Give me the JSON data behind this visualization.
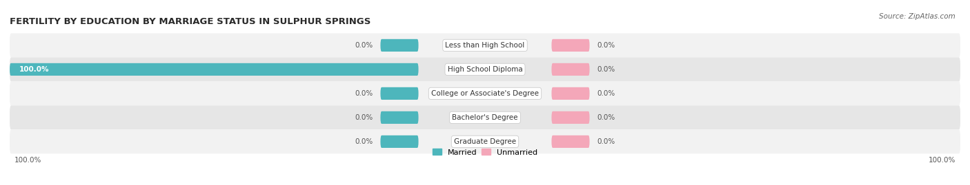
{
  "title": "FERTILITY BY EDUCATION BY MARRIAGE STATUS IN SULPHUR SPRINGS",
  "source_text": "Source: ZipAtlas.com",
  "categories": [
    "Less than High School",
    "High School Diploma",
    "College or Associate's Degree",
    "Bachelor's Degree",
    "Graduate Degree"
  ],
  "married_values": [
    0.0,
    100.0,
    0.0,
    0.0,
    0.0
  ],
  "unmarried_values": [
    0.0,
    0.0,
    0.0,
    0.0,
    0.0
  ],
  "married_color": "#4db6bc",
  "unmarried_color": "#f4a7b9",
  "row_bg_light": "#f2f2f2",
  "row_bg_dark": "#e6e6e6",
  "xlim": 100,
  "min_bar_width": 8,
  "bar_height": 0.52,
  "title_fontsize": 9.5,
  "label_fontsize": 7.5,
  "tick_fontsize": 7.5,
  "legend_fontsize": 8,
  "source_fontsize": 7.5,
  "value_label_color": "#555555",
  "bar_label_color": "#ffffff",
  "center_label_color": "#333333"
}
